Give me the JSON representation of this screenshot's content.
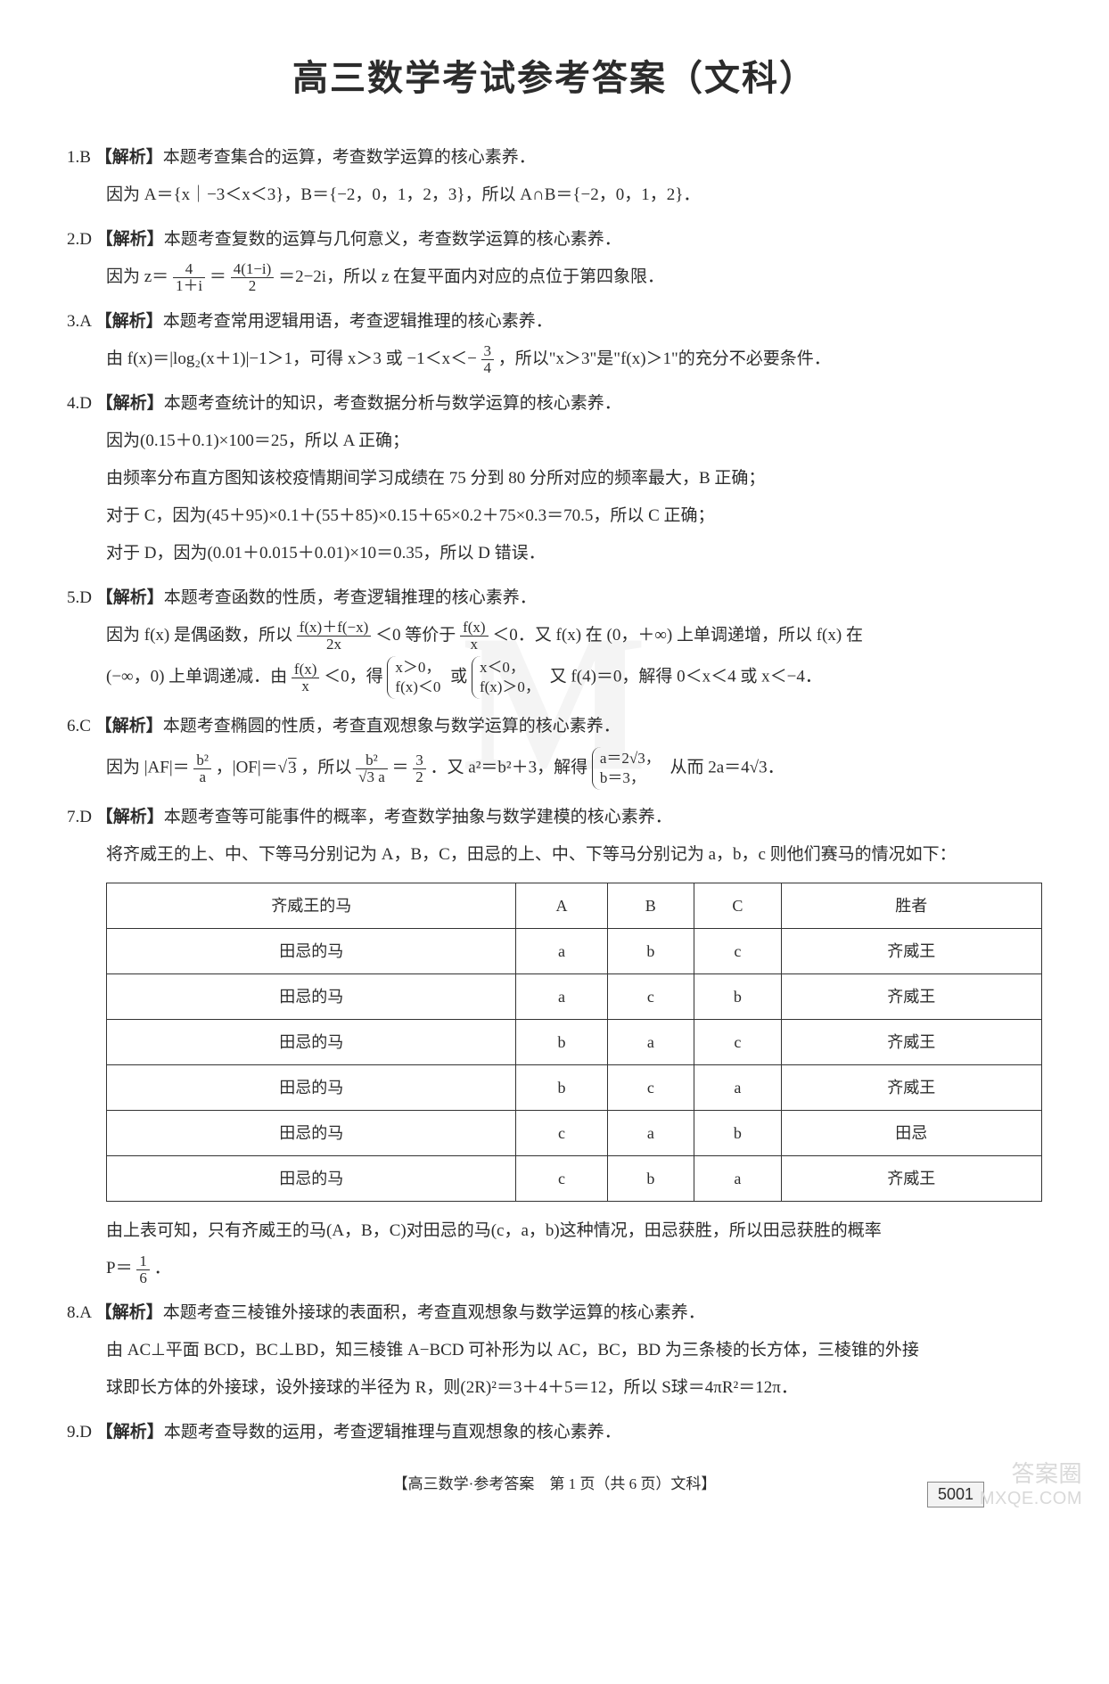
{
  "doc": {
    "title": "高三数学考试参考答案（文科）",
    "background": "#ffffff",
    "text_color": "#2c2c2c",
    "title_fontsize": 40,
    "body_fontsize": 19
  },
  "labels": {
    "analysis": "【解析】"
  },
  "q1": {
    "head": "1.B",
    "ana": "本题考查集合的运算，考查数学运算的核心素养．",
    "l1": "因为 A＝{x｜−3＜x＜3}，B＝{−2，0，1，2，3}，所以 A∩B＝{−2，0，1，2}．"
  },
  "q2": {
    "head": "2.D",
    "ana": "本题考查复数的运算与几何意义，考查数学运算的核心素养．",
    "pre": "因为 z＝",
    "f1n": "4",
    "f1d": "1＋i",
    "mid": "＝",
    "f2n": "4(1−i)",
    "f2d": "2",
    "post": "＝2−2i，所以 z 在复平面内对应的点位于第四象限．"
  },
  "q3": {
    "head": "3.A",
    "ana": "本题考查常用逻辑用语，考查逻辑推理的核心素养．",
    "pre": "由 f(x)＝|log₂(x＋1)|−1＞1，可得 x＞3 或 −1＜x＜−",
    "fn": "3",
    "fd": "4",
    "post": "，所以\"x＞3\"是\"f(x)＞1\"的充分不必要条件．"
  },
  "q4": {
    "head": "4.D",
    "ana": "本题考查统计的知识，考查数据分析与数学运算的核心素养．",
    "l1": "因为(0.15＋0.1)×100＝25，所以 A 正确；",
    "l2": "由频率分布直方图知该校疫情期间学习成绩在 75 分到 80 分所对应的频率最大，B 正确；",
    "l3": "对于 C，因为(45＋95)×0.1＋(55＋85)×0.15＋65×0.2＋75×0.3＝70.5，所以 C 正确；",
    "l4": "对于 D，因为(0.01＋0.015＋0.01)×10＝0.35，所以 D 错误．"
  },
  "q5": {
    "head": "5.D",
    "ana": "本题考查函数的性质，考查逻辑推理的核心素养．",
    "l1a": "因为 f(x) 是偶函数，所以",
    "f1n": "f(x)＋f(−x)",
    "f1d": "2x",
    "l1b": "＜0 等价于",
    "f2n": "f(x)",
    "f2d": "x",
    "l1c": "＜0．又 f(x) 在 (0，＋∞) 上单调递增，所以 f(x) 在",
    "l2a": "(−∞，0) 上单调递减．由",
    "f3n": "f(x)",
    "f3d": "x",
    "l2b": "＜0，得",
    "c1a": "x＞0，",
    "c1b": "f(x)＜0",
    "l2c": "或",
    "c2a": "x＜0，",
    "c2b": "f(x)＞0，",
    "l2d": "又 f(4)＝0，解得 0＜x＜4 或 x＜−4．"
  },
  "q6": {
    "head": "6.C",
    "ana": "本题考查椭圆的性质，考查直观想象与数学运算的核心素养．",
    "pre": "因为 |AF|＝",
    "f1n": "b²",
    "f1d": "a",
    "mid1": "，|OF|＝√",
    "sqrt1": "3",
    "mid2": "，所以",
    "f2n": "b²",
    "f2d": "√3 a",
    "mid3": "＝",
    "f3n": "3",
    "f3d": "2",
    "mid4": "．又 a²＝b²＋3，解得",
    "c1": "a＝2√3，",
    "c2": "b＝3，",
    "post": "从而 2a＝4√3．"
  },
  "q7": {
    "head": "7.D",
    "ana": "本题考查等可能事件的概率，考查数学抽象与数学建模的核心素养．",
    "l1": "将齐威王的上、中、下等马分别记为 A，B，C，田忌的上、中、下等马分别记为 a，b，c 则他们赛马的情况如下：",
    "table": {
      "columns": [
        "齐威王的马",
        "A",
        "B",
        "C",
        "胜者"
      ],
      "rows": [
        [
          "田忌的马",
          "a",
          "b",
          "c",
          "齐威王"
        ],
        [
          "田忌的马",
          "a",
          "c",
          "b",
          "齐威王"
        ],
        [
          "田忌的马",
          "b",
          "a",
          "c",
          "齐威王"
        ],
        [
          "田忌的马",
          "b",
          "c",
          "a",
          "齐威王"
        ],
        [
          "田忌的马",
          "c",
          "a",
          "b",
          "田忌"
        ],
        [
          "田忌的马",
          "c",
          "b",
          "a",
          "齐威王"
        ]
      ],
      "border_color": "#333333",
      "cell_fontsize": 18
    },
    "l2a": "由上表可知，只有齐威王的马(A，B，C)对田忌的马(c，a，b)这种情况，田忌获胜，所以田忌获胜的概率",
    "l2b": "P＝",
    "fn": "1",
    "fd": "6",
    "l2c": "．"
  },
  "q8": {
    "head": "8.A",
    "ana": "本题考查三棱锥外接球的表面积，考查直观想象与数学运算的核心素养．",
    "l1": "由 AC⊥平面 BCD，BC⊥BD，知三棱锥 A−BCD 可补形为以 AC，BC，BD 为三条棱的长方体，三棱锥的外接",
    "l2": "球即长方体的外接球，设外接球的半径为 R，则(2R)²＝3＋4＋5＝12，所以 S球＝4πR²＝12π．"
  },
  "q9": {
    "head": "9.D",
    "ana": "本题考查导数的运用，考查逻辑推理与直观想象的核心素养．"
  },
  "footer": "【高三数学·参考答案　第 1 页（共 6 页）文科】",
  "code": "5001",
  "wm": {
    "cn": "答案圈",
    "en": "MXQE.COM",
    "color": "#d9d9d9"
  }
}
